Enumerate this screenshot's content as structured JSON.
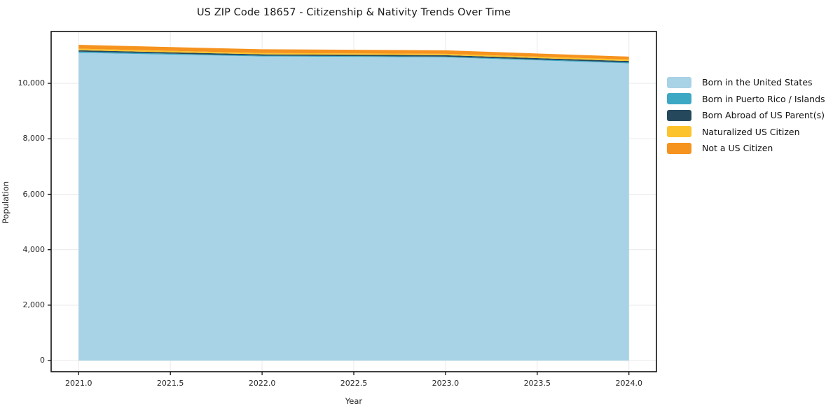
{
  "figure": {
    "background": "#ffffff"
  },
  "chart_data": {
    "type": "area",
    "stacked": true,
    "title": "US ZIP Code 18657 - Citizenship & Nativity Trends Over Time",
    "xlabel": "Year",
    "ylabel": "Population",
    "x": [
      2021,
      2022,
      2023,
      2024
    ],
    "series": [
      {
        "name": "Born in the United States",
        "color": "#a8d2e6",
        "values": [
          11100,
          10970,
          10940,
          10720
        ]
      },
      {
        "name": "Born in Puerto Rico / Islands",
        "color": "#3da8c4",
        "values": [
          45,
          30,
          25,
          35
        ]
      },
      {
        "name": "Born Abroad of US Parent(s)",
        "color": "#25485c",
        "values": [
          50,
          45,
          50,
          50
        ]
      },
      {
        "name": "Naturalized US Citizen",
        "color": "#fcc32c",
        "values": [
          55,
          50,
          50,
          55
        ]
      },
      {
        "name": "Not a US Citizen",
        "color": "#f6921e",
        "values": [
          140,
          135,
          125,
          105
        ]
      }
    ],
    "xticks": {
      "values": [
        2021.0,
        2021.5,
        2022.0,
        2022.5,
        2023.0,
        2023.5,
        2024.0
      ],
      "labels": [
        "2021.0",
        "2021.5",
        "2022.0",
        "2022.5",
        "2023.0",
        "2023.5",
        "2024.0"
      ]
    },
    "yticks": {
      "values": [
        0,
        2000,
        4000,
        6000,
        8000,
        10000
      ],
      "labels": [
        "0",
        "2,000",
        "4,000",
        "6,000",
        "8,000",
        "10,000"
      ]
    },
    "xlim": [
      2020.85,
      2024.15
    ],
    "ylim": [
      -400,
      11870
    ],
    "grid": true,
    "grid_color": "#e9e9e9",
    "legend_position": "right",
    "axis_color": "#000000",
    "spine_color": "#111111",
    "tick_label_color": "#262626"
  }
}
